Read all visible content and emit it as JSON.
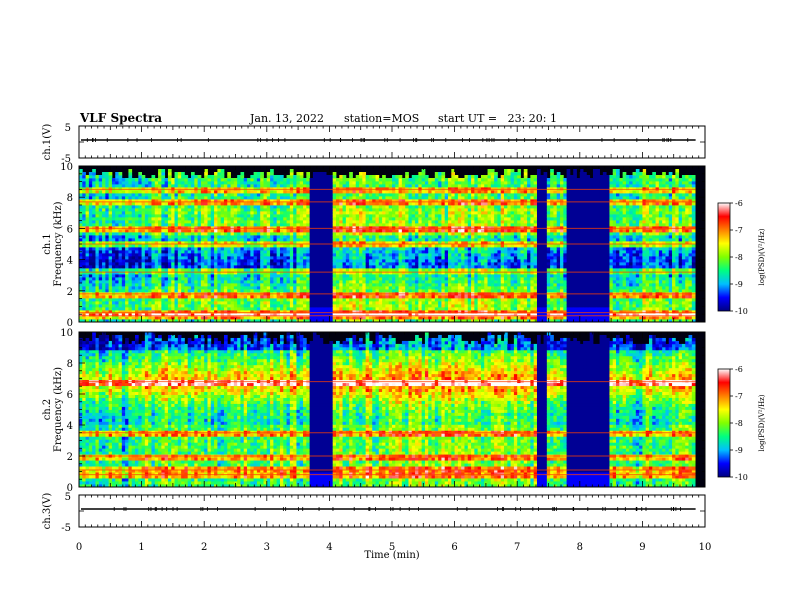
{
  "header": {
    "title": "VLF Spectra",
    "date": "Jan. 13, 2022",
    "station": "station=MOS",
    "start": "start UT =   23: 20: 1"
  },
  "chart_data": {
    "type": "heatmap",
    "title": "VLF Spectra",
    "xlabel": "Time (min)",
    "xlim": [
      0,
      10
    ],
    "xticks": [
      "0",
      "1",
      "2",
      "3",
      "4",
      "5",
      "6",
      "7",
      "8",
      "9",
      "10"
    ],
    "panels": [
      {
        "name": "ch.1",
        "ylabel": "ch.1(V)",
        "kind": "waveform",
        "ylim": [
          -5,
          5
        ],
        "yticks": [
          "5",
          "-5"
        ]
      },
      {
        "name": "ch.1",
        "ylabel": "ch.1 Frequency (kHz)",
        "kind": "spectrogram",
        "ylim": [
          0,
          10
        ],
        "yticks": [
          "0",
          "2",
          "4",
          "6",
          "8",
          "10"
        ]
      },
      {
        "name": "ch.2",
        "ylabel": "ch.2 Frequency (kHz)",
        "kind": "spectrogram",
        "ylim": [
          0,
          10
        ],
        "yticks": [
          "0",
          "2",
          "4",
          "6",
          "8",
          "10"
        ]
      },
      {
        "name": "ch.3",
        "ylabel": "ch.3(V)",
        "kind": "waveform",
        "ylim": [
          -5,
          5
        ],
        "yticks": [
          "5",
          "-5"
        ]
      }
    ],
    "data_end_min": 9.85,
    "quiet_intervals_min": [
      [
        3.7,
        4.05
      ],
      [
        7.3,
        7.45
      ],
      [
        7.8,
        8.5
      ]
    ],
    "ch1_bands_khz": [
      0.4,
      0.6,
      1.8,
      3.2,
      5.0,
      6.0,
      7.7,
      8.5
    ],
    "ch2_bands_khz": [
      0.8,
      1.1,
      2.0,
      3.5,
      6.8
    ],
    "colorbar": {
      "label": "log(PSD)(V²/Hz)",
      "range": [
        -10,
        -6
      ],
      "ticks": [
        "-6",
        "-7",
        "-8",
        "-9",
        "-10"
      ],
      "colors": [
        "#000080",
        "#0000ff",
        "#00bfff",
        "#00ff80",
        "#80ff00",
        "#ffff00",
        "#ff8000",
        "#ff0000",
        "#ffffff"
      ]
    }
  }
}
